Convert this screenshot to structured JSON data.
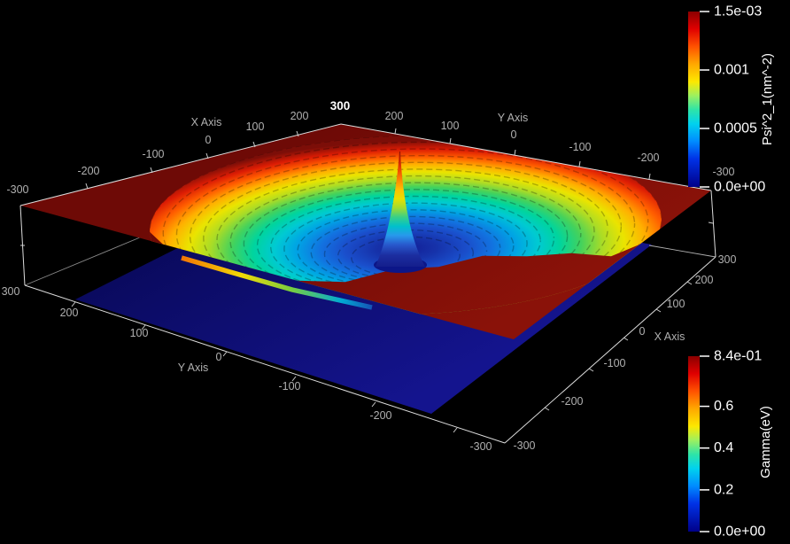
{
  "viewport": {
    "type": "3d-render-view",
    "background": "#000000"
  },
  "axes": {
    "top_x": {
      "label": "X Axis",
      "ticks": [
        "-300",
        "-200",
        "-100",
        "0",
        "100",
        "200"
      ]
    },
    "top_y": {
      "label": "Y Axis",
      "ticks": [
        "200",
        "100",
        "0",
        "-100",
        "-200",
        "-300"
      ]
    },
    "corner_label": "300",
    "bottom_y": {
      "label": "Y Axis",
      "ticks": [
        "300",
        "200",
        "100",
        "0",
        "-100",
        "-200",
        "-300"
      ]
    },
    "bottom_x": {
      "label": "X Axis",
      "ticks": [
        "-300",
        "-200",
        "-100",
        "0",
        "100",
        "200",
        "300"
      ]
    }
  },
  "colorbars": {
    "psi": {
      "title": "Psi^2_1(nm^-2)",
      "ticks": [
        "1.5e-03",
        "0.001",
        "0.0005",
        "0.0e+00"
      ]
    },
    "gamma": {
      "title": "Gamma(eV)",
      "ticks": [
        "8.4e-01",
        "0.6",
        "0.4",
        "0.2",
        "0.0e+00"
      ]
    }
  },
  "colors": {
    "background": "#000000",
    "plane_top": "#7c0e08",
    "plane_bottom": "#0e0e7a",
    "axis_line": "#dcdcdc",
    "tick_label": "#b0b0b0",
    "corner_label": "#ffffff",
    "colorbar_label": "#ffffff",
    "jet_top": "#8b0000",
    "jet_bottom": "#000089"
  },
  "chart_data": [
    {
      "type": "surface3d",
      "name": "Psi^2_1",
      "units": "nm^-2",
      "colormap": "jet",
      "value_range": [
        0.0,
        0.0015
      ],
      "colorbar_tick_labels": [
        "1.5e-03",
        "0.001",
        "0.0005",
        "0.0e+00"
      ],
      "colorbar_tick_values": [
        0.0015,
        0.001,
        0.0005,
        0.0
      ],
      "x_axis": {
        "label": "X Axis",
        "range": [
          -300,
          300
        ],
        "tick_step": 100
      },
      "y_axis": {
        "label": "Y Axis",
        "range": [
          -300,
          300
        ],
        "tick_step": 100
      },
      "shape": "flat plateau at maximum value (dark red) over most of the domain, with a circular crater depression of concentric contour rings descending through orange/yellow/green/cyan to near 0 (dark blue) around the origin, and a sharp narrow axial peak at the center rising back to the maximum"
    },
    {
      "type": "surface3d",
      "name": "Gamma",
      "units": "eV",
      "colormap": "jet",
      "value_range": [
        0.0,
        0.84
      ],
      "colorbar_tick_labels": [
        "8.4e-01",
        "0.6",
        "0.4",
        "0.2",
        "0.0e+00"
      ],
      "colorbar_tick_values": [
        0.84,
        0.6,
        0.4,
        0.2,
        0.0
      ],
      "x_axis": {
        "label": "X Axis",
        "range": [
          -300,
          300
        ],
        "tick_step": 100
      },
      "y_axis": {
        "label": "Y Axis",
        "range": [
          -300,
          300
        ],
        "tick_step": 100
      },
      "shape": "flat plane at minimum value (dark navy blue) drawn below the first surface"
    }
  ]
}
